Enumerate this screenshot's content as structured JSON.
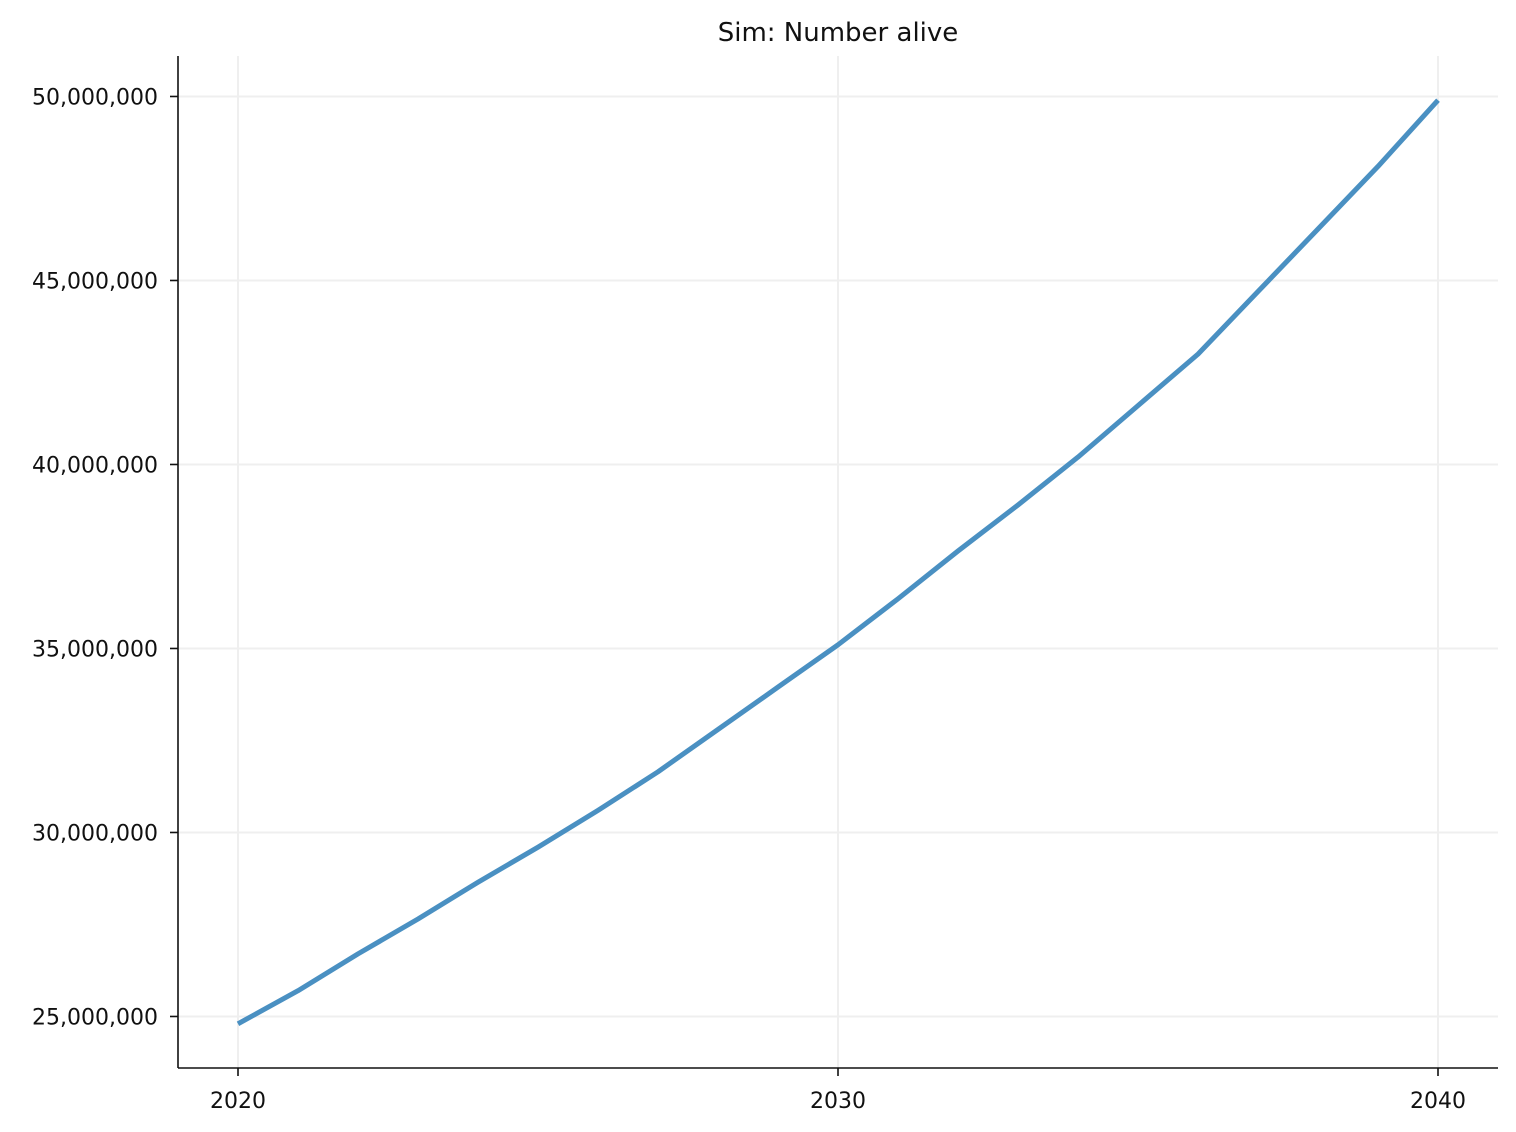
{
  "chart_data": {
    "type": "line",
    "title": "Sim: Number alive",
    "xlabel": "",
    "ylabel": "",
    "x": [
      2020,
      2021,
      2022,
      2023,
      2024,
      2025,
      2026,
      2027,
      2028,
      2029,
      2030,
      2031,
      2032,
      2033,
      2034,
      2035,
      2036,
      2037,
      2038,
      2039,
      2040
    ],
    "series": [
      {
        "name": "",
        "color": "#4a90c2",
        "values": [
          24800000,
          25700000,
          26700000,
          27650000,
          28650000,
          29600000,
          30600000,
          31650000,
          32800000,
          33950000,
          35100000,
          36350000,
          37650000,
          38900000,
          40200000,
          41600000,
          43000000,
          44700000,
          46400000,
          48100000,
          49900000
        ]
      }
    ],
    "x_ticks": [
      2020,
      2030,
      2040
    ],
    "x_tick_labels": [
      "2020",
      "2030",
      "2040"
    ],
    "y_ticks": [
      25000000,
      30000000,
      35000000,
      40000000,
      45000000,
      50000000
    ],
    "y_tick_labels": [
      "25,000,000",
      "30,000,000",
      "35,000,000",
      "40,000,000",
      "45,000,000",
      "50,000,000"
    ],
    "xlim": [
      2019,
      2041
    ],
    "ylim": [
      23600000,
      51100000
    ],
    "grid": true,
    "legend": "none"
  }
}
